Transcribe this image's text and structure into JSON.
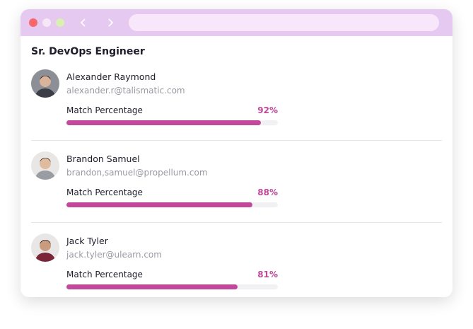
{
  "header": {
    "title": "Sr. DevOps Engineer"
  },
  "match_xlim": [
    0,
    100
  ],
  "candidates": [
    {
      "name": "Alexander Raymond",
      "email": "alexander.r@talismatic.com",
      "match_title": "Match Percentage",
      "match": {
        "value": 92,
        "label": "92%"
      }
    },
    {
      "name": "Brandon Samuel",
      "email": "brandon,samuel@propellum.com",
      "match_title": "Match Percentage",
      "match": {
        "value": 88,
        "label": "88%"
      }
    },
    {
      "name": "Jack Tyler",
      "email": "jack.tyler@ulearn.com",
      "match_title": "Match Percentage",
      "match": {
        "value": 81,
        "label": "81%"
      }
    }
  ]
}
